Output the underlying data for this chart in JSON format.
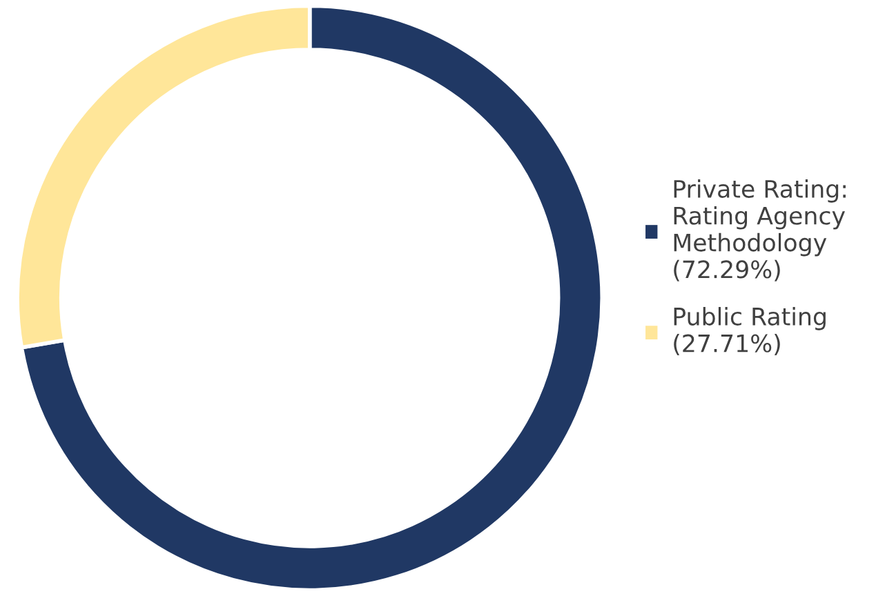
{
  "chart_data": {
    "type": "donut",
    "categories": [
      "Private Rating:\nRating Agency\nMethodology\n(72.29%)",
      "Public Rating\n(27.71%)"
    ],
    "values": [
      72.29,
      27.71
    ],
    "colors": [
      "#203864",
      "#ffe699"
    ],
    "legend": "right"
  }
}
